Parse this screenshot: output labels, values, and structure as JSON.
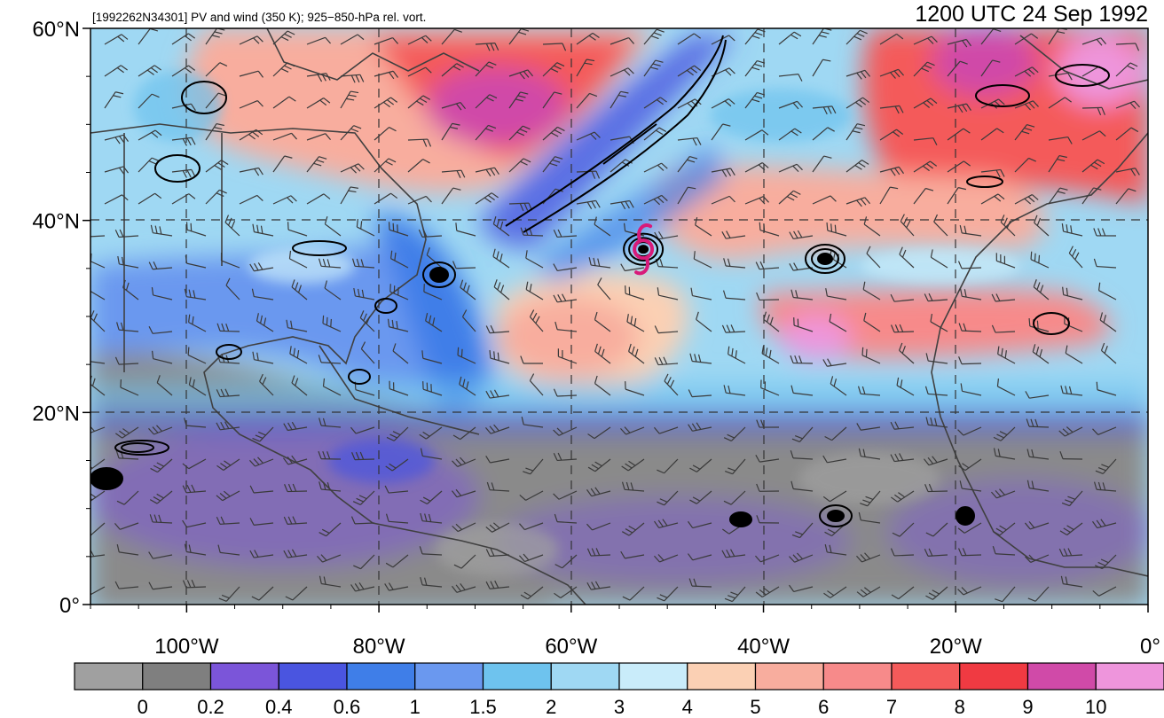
{
  "figure": {
    "title_left": "[1992262N34301] PV and wind (350 K); 925−850-hPa rel. vort.",
    "title_right": "1200 UTC 24 Sep 1992"
  },
  "map": {
    "lat_ticks": [
      {
        "value": 60,
        "label": "60°N"
      },
      {
        "value": 40,
        "label": "40°N"
      },
      {
        "value": 20,
        "label": "20°N"
      },
      {
        "value": 0,
        "label": "0°"
      }
    ],
    "lon_ticks": [
      {
        "value": -100,
        "label": "100°W"
      },
      {
        "value": -80,
        "label": "80°W"
      },
      {
        "value": -60,
        "label": "60°W"
      },
      {
        "value": -40,
        "label": "40°W"
      },
      {
        "value": -20,
        "label": "20°W"
      },
      {
        "value": 0,
        "label": "0°"
      }
    ],
    "lon_range": [
      -110,
      0
    ],
    "lat_range": [
      0,
      60
    ],
    "storm_symbol": {
      "lon": -52.5,
      "lat": 37,
      "color": "#d81b7a"
    }
  },
  "colorbar": {
    "levels": [
      "0",
      "0.2",
      "0.4",
      "0.6",
      "1",
      "1.5",
      "2",
      "3",
      "4",
      "5",
      "6",
      "7",
      "8",
      "9",
      "10"
    ],
    "colors": [
      "#a0a0a0",
      "#7f7f7f",
      "#7b55d9",
      "#4a55e0",
      "#3f7ee8",
      "#6a98ef",
      "#6ec3ee",
      "#9fd8f3",
      "#c9ecfa",
      "#fbd0b4",
      "#f8ad9e",
      "#f78a8a",
      "#f45a5a",
      "#f03a42",
      "#d04aa8",
      "#ee95dc"
    ]
  },
  "colors": {
    "contour": "#000000",
    "coastline": "#404040",
    "wind_barb": "#3a3a3a"
  }
}
